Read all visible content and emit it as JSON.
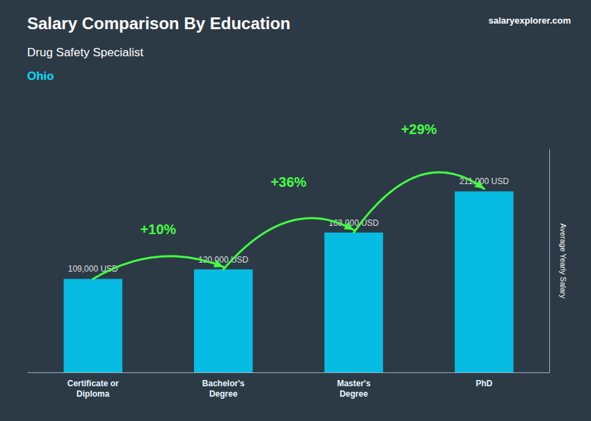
{
  "chart_data": {
    "type": "bar",
    "title": "Salary Comparison By Education",
    "subtitle": "Drug Safety Specialist",
    "ylabel": "Average Yearly Salary",
    "categories": [
      "Certificate or\nDiploma",
      "Bachelor's\nDegree",
      "Master's\nDegree",
      "PhD"
    ],
    "values": [
      109000,
      120000,
      163000,
      211000
    ],
    "value_labels": [
      "109,000 USD",
      "120,000 USD",
      "163,000 USD",
      "211,000 USD"
    ],
    "data_labels": true,
    "color": "#00D4FF",
    "ylim": [
      0,
      260000
    ],
    "tick_labels": false,
    "grid": false,
    "annotations": [
      {
        "text": "Ohio",
        "color": "#00DDFF"
      },
      {
        "text": "salaryexplorer.com"
      },
      {
        "text": "+10%",
        "from": "Certificate or\nDiploma",
        "to": "Bachelor's\nDegree",
        "color": "#44FF44"
      },
      {
        "text": "+36%",
        "from": "Bachelor's\nDegree",
        "to": "Master's\nDegree",
        "color": "#44FF44"
      },
      {
        "text": "+29%",
        "from": "Master's\nDegree",
        "to": "PhD",
        "color": "#44FF44"
      }
    ]
  }
}
